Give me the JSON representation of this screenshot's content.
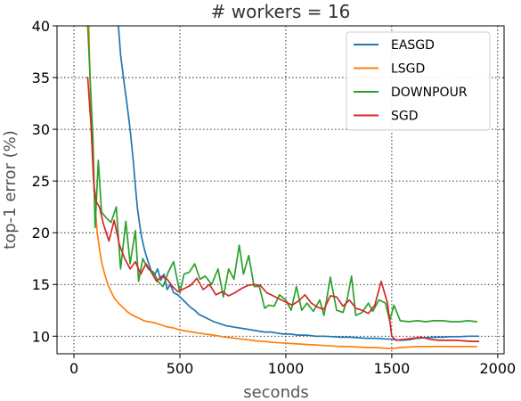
{
  "chart_data": {
    "type": "line",
    "title": "# workers = 16",
    "xlabel": "seconds",
    "ylabel": "top-1 error (%)",
    "xlim": [
      -80,
      2030
    ],
    "ylim": [
      8.3,
      40
    ],
    "xticks": [
      0,
      500,
      1000,
      1500,
      2000
    ],
    "yticks": [
      10,
      15,
      20,
      25,
      30,
      35,
      40
    ],
    "grid": true,
    "legend_position": "top-right",
    "series": [
      {
        "name": "EASGD",
        "color": "#1f77b4",
        "x": [
          210,
          220,
          235,
          250,
          265,
          280,
          290,
          300,
          310,
          320,
          335,
          350,
          365,
          380,
          395,
          410,
          425,
          440,
          455,
          470,
          490,
          510,
          530,
          550,
          570,
          590,
          610,
          630,
          660,
          690,
          720,
          750,
          780,
          810,
          840,
          870,
          900,
          930,
          960,
          990,
          1020,
          1060,
          1100,
          1140,
          1180,
          1220,
          1260,
          1300,
          1340,
          1380,
          1420,
          1460,
          1500,
          1540,
          1580,
          1620,
          1660,
          1700,
          1740,
          1780,
          1820,
          1860,
          1910
        ],
        "y": [
          40,
          37.2,
          34.8,
          32.5,
          30,
          27,
          24.5,
          22.3,
          20.8,
          19.5,
          18.2,
          17.2,
          16.3,
          15.9,
          16.5,
          15.4,
          16.0,
          14.5,
          15.0,
          14.2,
          14.0,
          13.6,
          13.2,
          12.8,
          12.5,
          12.1,
          11.9,
          11.7,
          11.4,
          11.2,
          11.0,
          10.9,
          10.8,
          10.7,
          10.6,
          10.5,
          10.4,
          10.4,
          10.3,
          10.2,
          10.2,
          10.1,
          10.1,
          10.0,
          10.0,
          9.95,
          9.9,
          9.9,
          9.85,
          9.8,
          9.8,
          9.75,
          9.7,
          9.6,
          9.65,
          9.8,
          9.85,
          9.9,
          9.9,
          9.95,
          9.95,
          10.0,
          10.0
        ]
      },
      {
        "name": "LSGD",
        "color": "#ff7f0e",
        "x": [
          70,
          80,
          90,
          100,
          110,
          120,
          130,
          145,
          160,
          175,
          190,
          210,
          230,
          250,
          270,
          290,
          310,
          330,
          350,
          380,
          410,
          440,
          470,
          500,
          530,
          560,
          590,
          620,
          660,
          700,
          740,
          780,
          820,
          860,
          900,
          940,
          980,
          1020,
          1060,
          1100,
          1140,
          1180,
          1220,
          1260,
          1300,
          1340,
          1380,
          1420,
          1460,
          1500,
          1540,
          1580,
          1620,
          1660,
          1700,
          1740,
          1780,
          1820,
          1860,
          1900
        ],
        "y": [
          40,
          31,
          26,
          22.5,
          20,
          18.5,
          17.2,
          16.0,
          15.0,
          14.3,
          13.7,
          13.2,
          12.8,
          12.4,
          12.1,
          11.9,
          11.7,
          11.5,
          11.4,
          11.3,
          11.1,
          10.9,
          10.8,
          10.6,
          10.5,
          10.4,
          10.3,
          10.2,
          10.1,
          9.95,
          9.85,
          9.75,
          9.65,
          9.55,
          9.5,
          9.4,
          9.35,
          9.3,
          9.25,
          9.2,
          9.15,
          9.1,
          9.05,
          9.0,
          9.0,
          8.95,
          8.9,
          8.9,
          8.85,
          8.8,
          8.9,
          8.95,
          9.0,
          9.0,
          9.0,
          9.0,
          9.0,
          9.0,
          9.0,
          9.0
        ]
      },
      {
        "name": "DOWNPOUR",
        "color": "#2ca02c",
        "x": [
          65,
          90,
          100,
          115,
          130,
          150,
          175,
          200,
          220,
          245,
          265,
          290,
          305,
          325,
          350,
          375,
          400,
          420,
          445,
          470,
          500,
          520,
          545,
          570,
          595,
          620,
          650,
          680,
          705,
          730,
          755,
          780,
          800,
          825,
          850,
          875,
          900,
          920,
          945,
          970,
          1000,
          1025,
          1050,
          1075,
          1100,
          1130,
          1160,
          1180,
          1210,
          1240,
          1270,
          1290,
          1310,
          1330,
          1360,
          1390,
          1410,
          1440,
          1470,
          1490,
          1510,
          1540,
          1580,
          1620,
          1660,
          1700,
          1740,
          1780,
          1820,
          1860,
          1900
        ],
        "y": [
          40,
          29,
          20.5,
          27,
          22,
          21.5,
          21,
          22.5,
          16.5,
          21.1,
          17,
          20.2,
          15.3,
          17.5,
          16.5,
          16.2,
          15.2,
          14.8,
          16.2,
          17.2,
          14.2,
          16,
          16.2,
          17.0,
          15.5,
          15.8,
          15.0,
          16.5,
          13.8,
          16.5,
          15.5,
          18.8,
          16.0,
          17.8,
          14.8,
          14.8,
          12.7,
          13.0,
          12.9,
          14.0,
          13.5,
          12.5,
          14.8,
          12.5,
          13.2,
          12.4,
          13.5,
          12.0,
          15.7,
          12.5,
          12.3,
          13.6,
          15.8,
          12.0,
          12.3,
          13.2,
          12.4,
          13.5,
          13.2,
          11.5,
          13.0,
          11.5,
          11.4,
          11.5,
          11.4,
          11.5,
          11.5,
          11.4,
          11.4,
          11.5,
          11.4
        ]
      },
      {
        "name": "SGD",
        "color": "#d62728",
        "x": [
          65,
          80,
          95,
          105,
          120,
          140,
          165,
          190,
          215,
          240,
          265,
          290,
          315,
          340,
          365,
          390,
          415,
          440,
          465,
          490,
          520,
          550,
          580,
          610,
          640,
          670,
          700,
          730,
          760,
          790,
          820,
          850,
          880,
          910,
          940,
          970,
          1000,
          1030,
          1060,
          1090,
          1120,
          1150,
          1180,
          1210,
          1240,
          1270,
          1300,
          1330,
          1360,
          1390,
          1420,
          1450,
          1480,
          1500,
          1520,
          1560,
          1600,
          1640,
          1680,
          1720,
          1760,
          1800,
          1840,
          1880,
          1910
        ],
        "y": [
          35,
          30.5,
          24.5,
          23,
          22.5,
          20.8,
          19.2,
          21.2,
          18.8,
          17.5,
          16.5,
          17.2,
          16.0,
          17.0,
          16.2,
          15.3,
          15.8,
          15.5,
          14.8,
          14.3,
          14.6,
          14.9,
          15.6,
          14.5,
          15.0,
          14.0,
          14.3,
          13.9,
          14.2,
          14.6,
          14.9,
          15.0,
          14.9,
          14.2,
          13.9,
          13.6,
          13.3,
          13.0,
          13.4,
          14.0,
          13.2,
          12.8,
          12.6,
          13.9,
          13.8,
          12.9,
          13.5,
          12.7,
          12.5,
          12.2,
          13.0,
          15.3,
          13.2,
          10.0,
          9.6,
          9.7,
          9.8,
          9.9,
          9.7,
          9.6,
          9.6,
          9.6,
          9.55,
          9.5,
          9.5
        ]
      }
    ]
  }
}
